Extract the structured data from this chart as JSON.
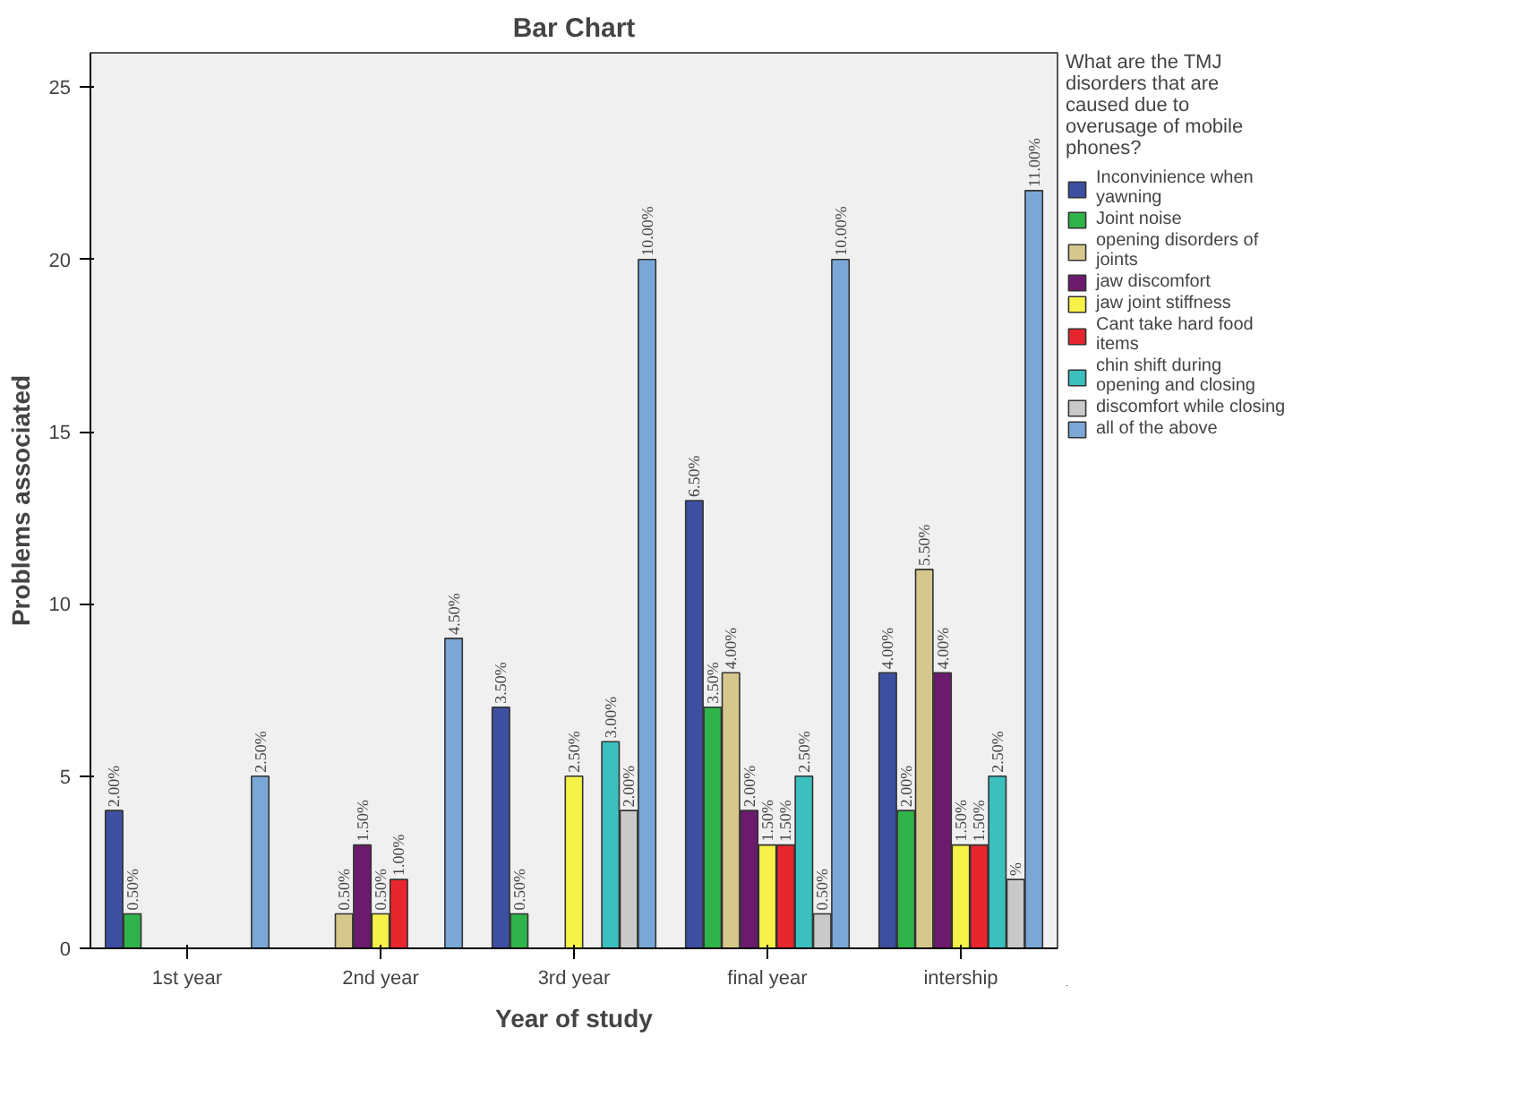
{
  "chart_data": {
    "type": "bar",
    "title": "Bar Chart",
    "xlabel": "Year of study",
    "ylabel": "Problems associated",
    "legend_title": "What are the TMJ disorders that are caused due to overusage of mobile phones?",
    "categories": [
      "1st year",
      "2nd year",
      "3rd year",
      "final year",
      "intership"
    ],
    "series": [
      {
        "name": "Inconvinience when yawning",
        "color": "#3d4fa0",
        "values": [
          4,
          null,
          7,
          13,
          8
        ]
      },
      {
        "name": "Joint noise",
        "color": "#2fb34a",
        "values": [
          1,
          null,
          1,
          7,
          4
        ]
      },
      {
        "name": "opening disorders of joints",
        "color": "#d6c78d",
        "values": [
          null,
          1,
          null,
          8,
          11
        ]
      },
      {
        "name": "jaw discomfort",
        "color": "#6b1a6e",
        "values": [
          null,
          3,
          null,
          4,
          8
        ]
      },
      {
        "name": "jaw joint stiffness",
        "color": "#f7f24a",
        "values": [
          null,
          1,
          5,
          3,
          3
        ]
      },
      {
        "name": "Cant take hard food items",
        "color": "#e8262e",
        "values": [
          null,
          2,
          null,
          3,
          3
        ]
      },
      {
        "name": "chin shift during opening and closing",
        "color": "#3bbfbf",
        "values": [
          null,
          null,
          6,
          5,
          5
        ]
      },
      {
        "name": "discomfort while closing",
        "color": "#c9c9c9",
        "values": [
          null,
          null,
          4,
          1,
          2
        ]
      },
      {
        "name": "all of the above",
        "color": "#7aa7d6",
        "values": [
          5,
          9,
          20,
          20,
          22
        ]
      }
    ],
    "annotations": [
      "2.00%",
      "3.50%",
      "6.50%",
      "4.00%",
      "0.50%",
      "0.50%",
      "3.50%",
      "2.00%",
      "0.50%",
      "4.00%",
      "5.50%",
      "1.50%",
      "2.00%",
      "4.00%",
      "0.50%",
      "2.50%",
      "1.50%",
      "1.50%",
      "1.00%",
      "1.50%",
      "1.50%",
      "3.00%",
      "2.50%",
      "2.50%",
      "2.00%",
      "0.50%",
      "%",
      "2.50%",
      "4.50%",
      "10.00%",
      "10.00%",
      "11.00%"
    ],
    "ylim": [
      0,
      26
    ],
    "yticks": [
      0,
      5,
      10,
      15,
      20,
      25
    ],
    "grid": false,
    "legend": "right"
  }
}
